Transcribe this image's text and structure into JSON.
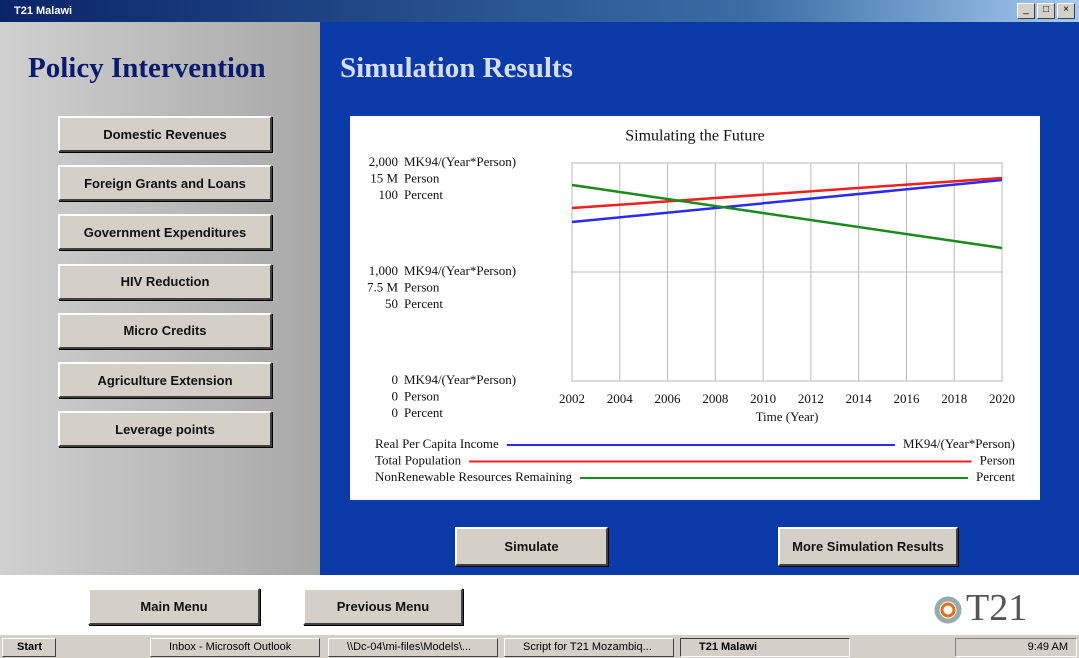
{
  "window": {
    "title": "T21 Malawi"
  },
  "sidebar": {
    "heading": "Policy Intervention",
    "buttons": [
      "Domestic Revenues",
      "Foreign Grants and Loans",
      "Government Expenditures",
      "HIV Reduction",
      "Micro Credits",
      "Agriculture Extension",
      "Leverage points"
    ]
  },
  "main": {
    "heading": "Simulation Results",
    "buttons": [
      "Simulate",
      "More Simulation Results"
    ]
  },
  "chart_data": {
    "type": "line",
    "title": "Simulating the Future",
    "xlabel": "Time (Year)",
    "xlim": [
      2002,
      2020
    ],
    "xticks": [
      2002,
      2004,
      2006,
      2008,
      2010,
      2012,
      2014,
      2016,
      2018,
      2020
    ],
    "axes": [
      {
        "unit": "MK94/(Year*Person)",
        "ylim": [
          0,
          2000
        ],
        "yticks": [
          0,
          {
            "value": 1000,
            "label": "1,000"
          },
          {
            "value": 2000,
            "label": "2,000"
          }
        ]
      },
      {
        "unit": "Person",
        "ylim": [
          0,
          15000000
        ],
        "yticks": [
          0,
          {
            "value": 7500000,
            "label": "7.5 M"
          },
          {
            "value": 15000000,
            "label": "15 M"
          }
        ]
      },
      {
        "unit": "Percent",
        "ylim": [
          0,
          100
        ],
        "yticks": [
          0,
          50,
          100
        ]
      }
    ],
    "x": [
      2002,
      2020
    ],
    "series": [
      {
        "name": "Real Per Capita Income",
        "color": "#2b2bf0",
        "values": [
          1459,
          1844
        ]
      },
      {
        "name": "Total Population",
        "color": "#f02020",
        "values": [
          11900000,
          13970000
        ]
      },
      {
        "name": "NonRenewable Resources Remaining",
        "color": "#1a8a1a",
        "values": [
          89.9,
          61
        ]
      }
    ],
    "grid": true
  },
  "footer": {
    "buttons": [
      "Main Menu",
      "Previous Menu"
    ],
    "logo": "T21"
  },
  "taskbar": {
    "start": "Start",
    "tasks": [
      "Inbox - Microsoft Outlook",
      "\\\\Dc-04\\mi-files\\Models\\...",
      "Script for T21 Mozambiq...",
      "T21 Malawi"
    ],
    "clock": "9:49 AM"
  }
}
